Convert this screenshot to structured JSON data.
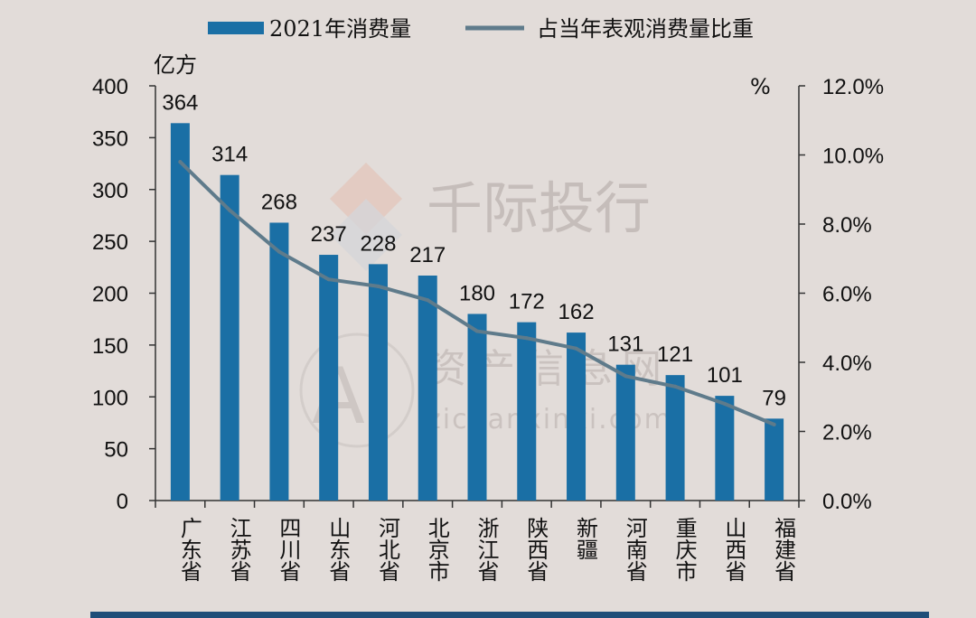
{
  "chart_data": {
    "type": "bar",
    "categories": [
      "广东省",
      "江苏省",
      "四川省",
      "山东省",
      "河北省",
      "北京市",
      "浙江省",
      "陕西省",
      "新疆",
      "河南省",
      "重庆市",
      "山西省",
      "福建省"
    ],
    "series": [
      {
        "name": "2021年消费量",
        "type": "bar",
        "axis": "left",
        "values": [
          364,
          314,
          268,
          237,
          228,
          217,
          180,
          172,
          162,
          131,
          121,
          101,
          79
        ],
        "data_labels": [
          "364",
          "314",
          "268",
          "237",
          "228",
          "217",
          "180",
          "172",
          "162",
          "131",
          "121",
          "101",
          "79"
        ]
      },
      {
        "name": "占当年表观消费量比重",
        "type": "line",
        "axis": "right",
        "values": [
          9.8,
          8.4,
          7.2,
          6.4,
          6.2,
          5.8,
          4.9,
          4.7,
          4.4,
          3.6,
          3.3,
          2.8,
          2.2
        ]
      }
    ],
    "y_left": {
      "unit": "亿方",
      "ylim": [
        0,
        400
      ],
      "ticks": [
        "0",
        "50",
        "100",
        "150",
        "200",
        "250",
        "300",
        "350",
        "400"
      ]
    },
    "y_right": {
      "unit": "%",
      "ylim": [
        0,
        12
      ],
      "ticks": [
        "0.0%",
        "2.0%",
        "4.0%",
        "6.0%",
        "8.0%",
        "10.0%",
        "12.0%"
      ]
    },
    "legend_position": "top",
    "grid": false
  },
  "colors": {
    "bar": "#1a6fa5",
    "line": "#5f7b8b",
    "axis": "#333333",
    "background": "#e2dcd9",
    "bottom_rule": "#1f4e79"
  },
  "watermark": {
    "brand": "千际投行",
    "site_cn": "资产信息网",
    "site_url": "zichanxinxi.com",
    "logo_text": "AI"
  }
}
